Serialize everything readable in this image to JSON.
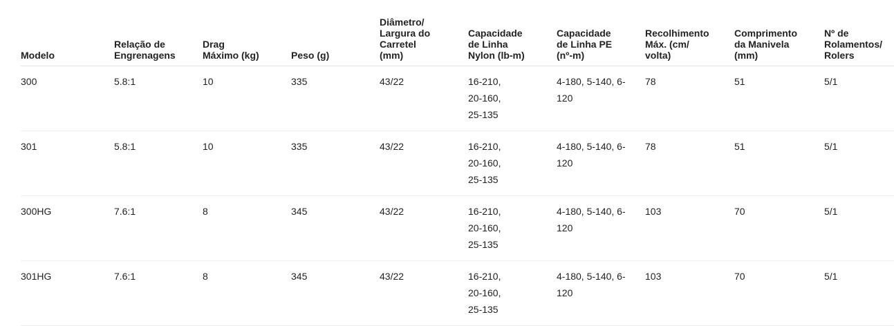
{
  "table": {
    "headers": [
      "Modelo",
      "Relação de\nEngrenagens",
      "Drag\nMáximo (kg)",
      "Peso (g)",
      "Diâmetro/\nLargura do\nCarretel\n(mm)",
      "Capacidade\nde Linha\nNylon (lb-m)",
      "Capacidade\nde Linha PE\n(nº-m)",
      "Recolhimento\nMáx. (cm/\nvolta)",
      "Comprimento\nda Manivela\n(mm)",
      "Nº de\nRolamentos/\nRolers"
    ],
    "rows": [
      [
        "300",
        "5.8:1",
        "10",
        "335",
        "43/22",
        "16-210, 20-160, 25-135",
        "4-180, 5-140, 6-120",
        "78",
        "51",
        "5/1"
      ],
      [
        "301",
        "5.8:1",
        "10",
        "335",
        "43/22",
        "16-210, 20-160, 25-135",
        "4-180, 5-140, 6-120",
        "78",
        "51",
        "5/1"
      ],
      [
        "300HG",
        "7.6:1",
        "8",
        "345",
        "43/22",
        "16-210, 20-160, 25-135",
        "4-180, 5-140, 6-120",
        "103",
        "70",
        "5/1"
      ],
      [
        "301HG",
        "7.6:1",
        "8",
        "345",
        "43/22",
        "16-210, 20-160, 25-135",
        "4-180, 5-140, 6-120",
        "103",
        "70",
        "5/1"
      ]
    ]
  }
}
